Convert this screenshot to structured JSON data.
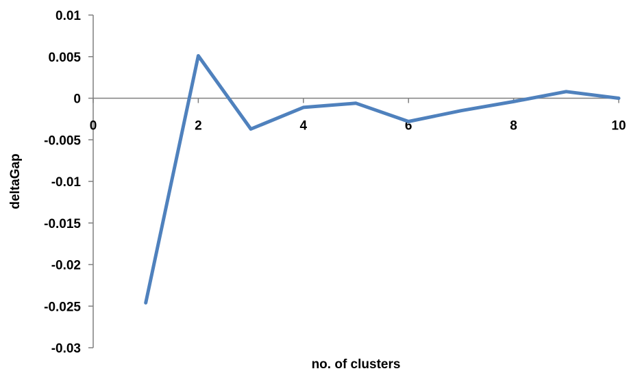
{
  "chart_data": {
    "type": "line",
    "title": "",
    "xlabel": "no. of clusters",
    "ylabel": "deltaGap",
    "xlim": [
      0,
      10
    ],
    "ylim": [
      -0.03,
      0.01
    ],
    "x_ticks": [
      "0",
      "2",
      "4",
      "6",
      "8",
      "10"
    ],
    "y_ticks": [
      "0.01",
      "0.005",
      "0",
      "-0.005",
      "-0.01",
      "-0.015",
      "-0.02",
      "-0.025",
      "-0.03"
    ],
    "grid": false,
    "legend": "none",
    "series": [
      {
        "color": "#4f81bd",
        "x": [
          1,
          2,
          3,
          4,
          5,
          6,
          7,
          8,
          9,
          10
        ],
        "y": [
          -0.0246,
          0.0051,
          -0.0037,
          -0.0011,
          -0.0006,
          -0.0028,
          -0.0015,
          -0.0004,
          0.0008,
          0.0
        ]
      }
    ]
  }
}
